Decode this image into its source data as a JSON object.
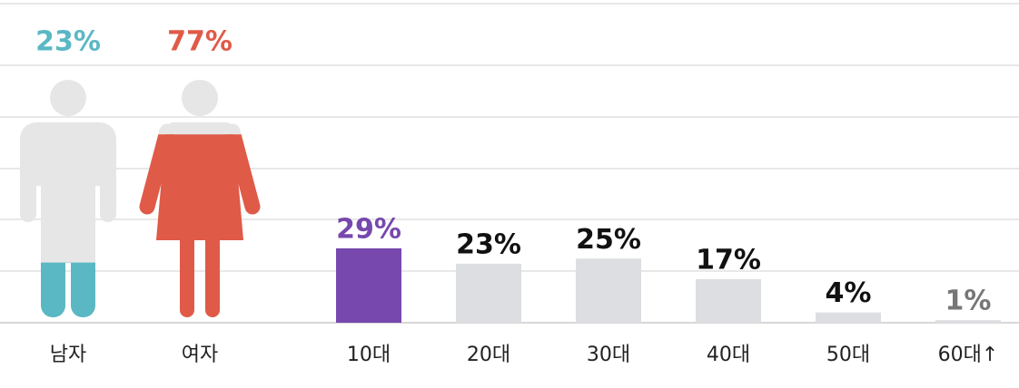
{
  "chart_data": [
    {
      "type": "pictogram",
      "categories": [
        "남자",
        "여자"
      ],
      "values": [
        23,
        77
      ],
      "value_labels": [
        "23%",
        "77%"
      ],
      "colors": [
        "#5ab8c4",
        "#e05a48"
      ],
      "base_color": "#e6e6e6"
    },
    {
      "type": "bar",
      "categories": [
        "10대",
        "20대",
        "30대",
        "40대",
        "50대",
        "60대↑"
      ],
      "values": [
        29,
        23,
        25,
        17,
        4,
        1
      ],
      "value_labels": [
        "29%",
        "23%",
        "25%",
        "17%",
        "4%",
        "1%"
      ],
      "colors": [
        "#7748ad",
        "#dcdee2",
        "#dcdee2",
        "#dcdee2",
        "#dcdee2",
        "#dcdee2"
      ],
      "label_colors": [
        "#7748ad",
        "#111111",
        "#111111",
        "#111111",
        "#111111",
        "#777777"
      ]
    }
  ]
}
